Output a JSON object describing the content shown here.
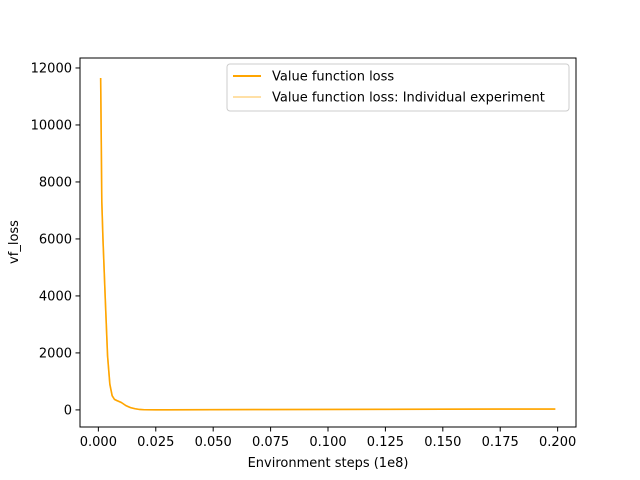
{
  "chart_data": {
    "type": "line",
    "title": "",
    "xlabel": "Environment steps (1e8)",
    "ylabel": "vf_loss",
    "xlim": [
      -0.008,
      0.208
    ],
    "ylim": [
      -600,
      12350
    ],
    "xticks": [
      0.0,
      0.025,
      0.05,
      0.075,
      0.1,
      0.125,
      0.15,
      0.175,
      0.2
    ],
    "xtick_labels": [
      "0.000",
      "0.025",
      "0.050",
      "0.075",
      "0.100",
      "0.125",
      "0.150",
      "0.175",
      "0.200"
    ],
    "yticks": [
      0,
      2000,
      4000,
      6000,
      8000,
      10000,
      12000
    ],
    "ytick_labels": [
      "0",
      "2000",
      "4000",
      "6000",
      "8000",
      "10000",
      "12000"
    ],
    "grid": false,
    "legend_position": "top-right",
    "series": [
      {
        "name": "Value function loss",
        "color": "#ffa500",
        "alpha": 1.0,
        "x": [
          0.001,
          0.0015,
          0.002,
          0.003,
          0.004,
          0.005,
          0.006,
          0.007,
          0.008,
          0.01,
          0.012,
          0.014,
          0.016,
          0.018,
          0.02,
          0.025,
          0.03,
          0.05,
          0.075,
          0.1,
          0.125,
          0.15,
          0.175,
          0.199
        ],
        "y": [
          11650,
          7300,
          6000,
          3900,
          1900,
          900,
          500,
          370,
          330,
          260,
          150,
          80,
          40,
          15,
          5,
          2,
          3,
          8,
          12,
          15,
          20,
          25,
          28,
          30
        ]
      },
      {
        "name": "Value function loss: Individual experiment",
        "color": "#ffa500",
        "alpha": 0.35,
        "x": [
          0.001,
          0.0015,
          0.002,
          0.003,
          0.004,
          0.005,
          0.006,
          0.007,
          0.008,
          0.01,
          0.012,
          0.014,
          0.016,
          0.018,
          0.02,
          0.025,
          0.03,
          0.05,
          0.075,
          0.1,
          0.125,
          0.15,
          0.175,
          0.199
        ],
        "y": [
          11650,
          7300,
          6000,
          3900,
          1900,
          900,
          500,
          370,
          330,
          260,
          150,
          80,
          40,
          15,
          5,
          2,
          3,
          8,
          12,
          15,
          20,
          25,
          28,
          30
        ]
      }
    ]
  }
}
